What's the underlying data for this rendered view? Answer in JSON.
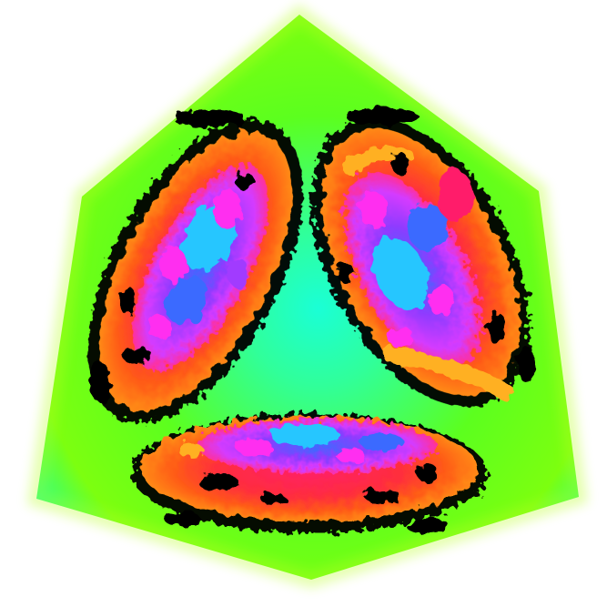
{
  "figure": {
    "background": "#ffffff",
    "palette": {
      "face_green": "#5cff1e",
      "face_cyan": "#22ffb8",
      "face_yellowgreen": "#b8ff22",
      "ring_outer": "#ff7a10",
      "ring_mid": "#ff3d25",
      "ring_inner": "#ff1f6a",
      "core_purple": "#a13bff",
      "core_magenta": "#ff2ff0",
      "core_blue": "#3b6bff",
      "core_cyan": "#27c6ff",
      "shadow": "#000000",
      "amber": "#ffb020"
    },
    "faces": [
      {
        "name": "left"
      },
      {
        "name": "right"
      },
      {
        "name": "bottom"
      }
    ]
  }
}
